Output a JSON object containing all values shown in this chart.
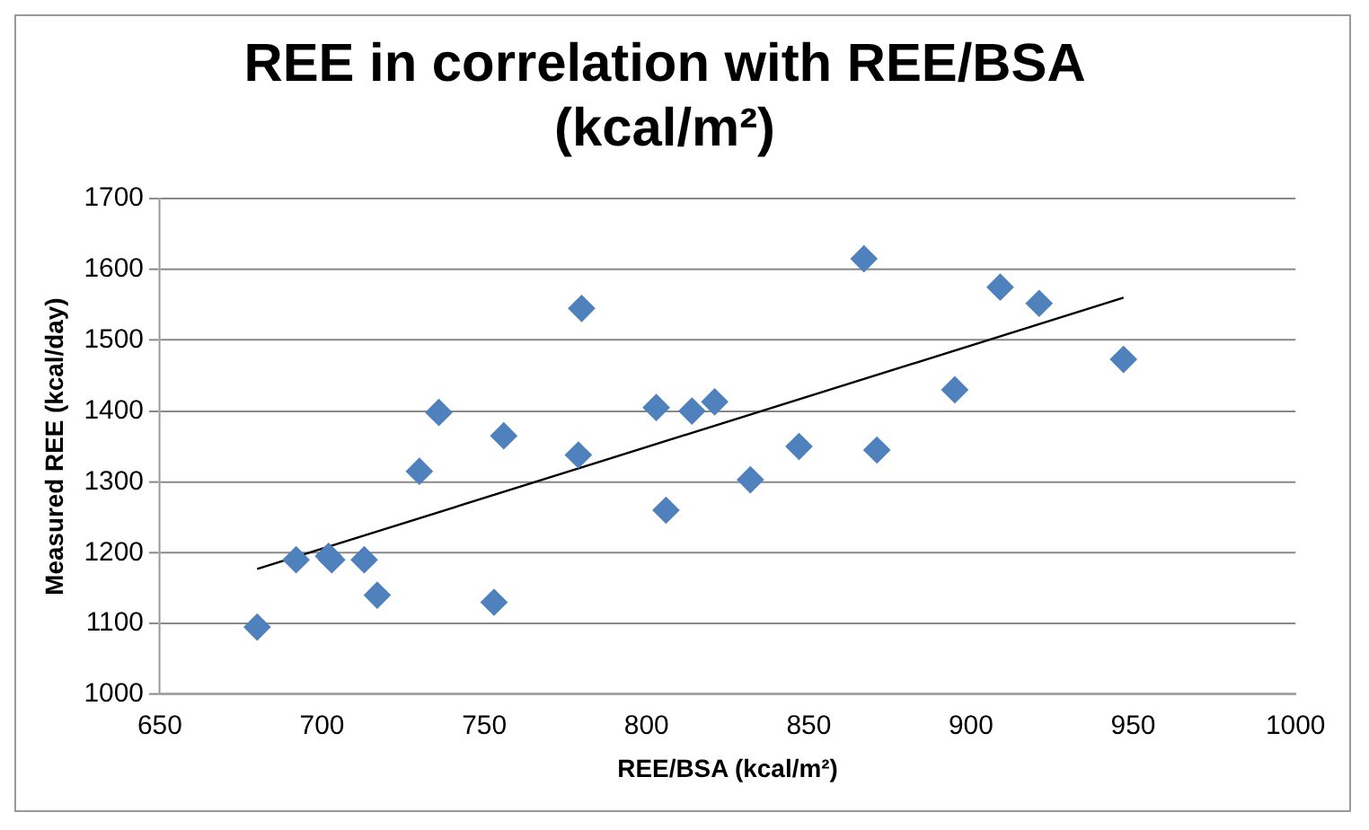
{
  "chart_data": {
    "type": "scatter",
    "title": "REE in correlation with REE/BSA (kcal/m²)",
    "xlabel": "REE/BSA (kcal/m²)",
    "ylabel": "Measured REE (kcal/day)",
    "xlim": [
      650,
      1000
    ],
    "xticks": [
      650,
      700,
      750,
      800,
      850,
      900,
      950,
      1000
    ],
    "ylim": [
      1000,
      1700
    ],
    "yticks": [
      1000,
      1100,
      1200,
      1300,
      1400,
      1500,
      1600,
      1700
    ],
    "grid": "y",
    "legend": false,
    "marker": "diamond",
    "series": [
      {
        "type": "scatter",
        "color": "#4f81bd",
        "x": [
          680,
          692,
          702,
          703,
          713,
          717,
          730,
          736,
          753,
          756,
          779,
          780,
          803,
          806,
          814,
          821,
          832,
          847,
          867,
          871,
          895,
          909,
          921,
          947
        ],
        "values": [
          1095,
          1190,
          1195,
          1190,
          1190,
          1140,
          1315,
          1398,
          1130,
          1365,
          1338,
          1545,
          1405,
          1260,
          1400,
          1413,
          1303,
          1350,
          1615,
          1345,
          1430,
          1575,
          1552,
          1473
        ]
      },
      {
        "type": "line",
        "color": "#000000",
        "x": [
          680,
          947
        ],
        "values": [
          1177,
          1560
        ],
        "marker": "none"
      }
    ]
  }
}
